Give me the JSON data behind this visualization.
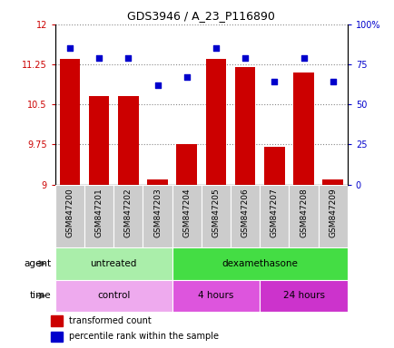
{
  "title": "GDS3946 / A_23_P116890",
  "samples": [
    "GSM847200",
    "GSM847201",
    "GSM847202",
    "GSM847203",
    "GSM847204",
    "GSM847205",
    "GSM847206",
    "GSM847207",
    "GSM847208",
    "GSM847209"
  ],
  "transformed_count": [
    11.35,
    10.65,
    10.65,
    9.1,
    9.75,
    11.35,
    11.2,
    9.7,
    11.1,
    9.1
  ],
  "percentile_rank": [
    85,
    79,
    79,
    62,
    67,
    85,
    79,
    64,
    79,
    64
  ],
  "bar_color": "#cc0000",
  "dot_color": "#0000cc",
  "ylim_left": [
    9,
    12
  ],
  "ylim_right": [
    0,
    100
  ],
  "yticks_left": [
    9,
    9.75,
    10.5,
    11.25,
    12
  ],
  "yticks_right": [
    0,
    25,
    50,
    75,
    100
  ],
  "ytick_labels_left": [
    "9",
    "9.75",
    "10.5",
    "11.25",
    "12"
  ],
  "ytick_labels_right": [
    "0",
    "25",
    "50",
    "75",
    "100%"
  ],
  "agent_groups": [
    {
      "label": "untreated",
      "start": 0,
      "end": 4,
      "color": "#aaeeaa"
    },
    {
      "label": "dexamethasone",
      "start": 4,
      "end": 10,
      "color": "#44dd44"
    }
  ],
  "time_groups": [
    {
      "label": "control",
      "start": 0,
      "end": 4,
      "color": "#eeaaee"
    },
    {
      "label": "4 hours",
      "start": 4,
      "end": 7,
      "color": "#dd55dd"
    },
    {
      "label": "24 hours",
      "start": 7,
      "end": 10,
      "color": "#cc33cc"
    }
  ],
  "legend_red_label": "transformed count",
  "legend_blue_label": "percentile rank within the sample",
  "grid_color": "#888888",
  "tick_color_left": "#cc0000",
  "tick_color_right": "#0000cc",
  "bar_bottom": 9.0,
  "bar_width": 0.7,
  "xlabel_gray": "#cccccc",
  "agent_label": "agent",
  "time_label": "time"
}
